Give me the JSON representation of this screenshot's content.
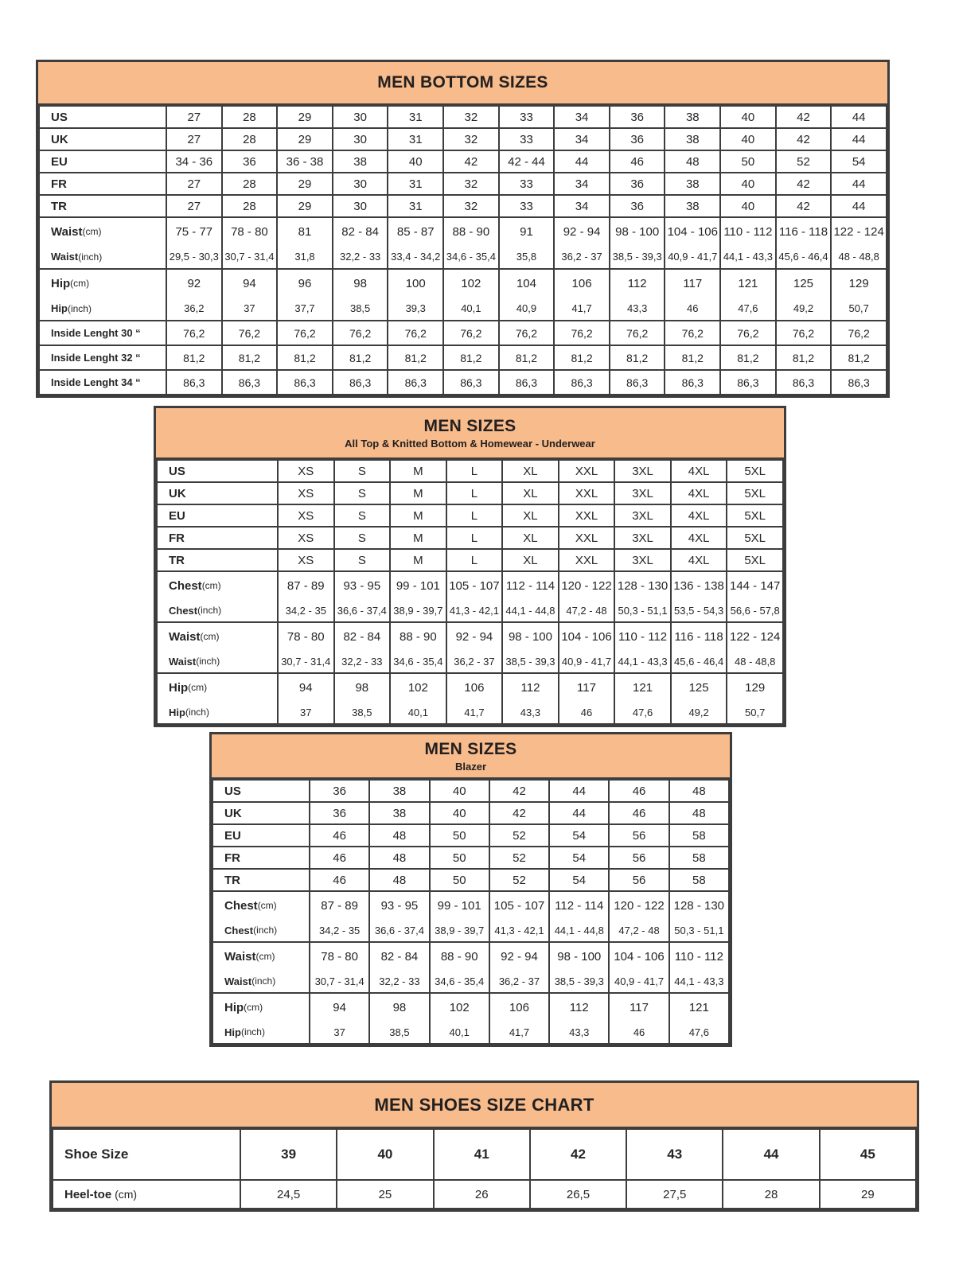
{
  "theme": {
    "header_bg": "#F7BB8C",
    "border_color": "#3d3d3d",
    "text_color": "#262626"
  },
  "tables": {
    "bottom": {
      "title": "MEN BOTTOM SIZES",
      "rows": [
        {
          "type": "single",
          "cls": "size",
          "label": "US",
          "values": [
            "27",
            "28",
            "29",
            "30",
            "31",
            "32",
            "33",
            "34",
            "36",
            "38",
            "40",
            "42",
            "44"
          ]
        },
        {
          "type": "single",
          "cls": "size",
          "label": "UK",
          "values": [
            "27",
            "28",
            "29",
            "30",
            "31",
            "32",
            "33",
            "34",
            "36",
            "38",
            "40",
            "42",
            "44"
          ]
        },
        {
          "type": "single",
          "cls": "size",
          "label": "EU",
          "values": [
            "34 - 36",
            "36",
            "36 - 38",
            "38",
            "40",
            "42",
            "42 - 44",
            "44",
            "46",
            "48",
            "50",
            "52",
            "54"
          ]
        },
        {
          "type": "single",
          "cls": "size",
          "label": "FR",
          "values": [
            "27",
            "28",
            "29",
            "30",
            "31",
            "32",
            "33",
            "34",
            "36",
            "38",
            "40",
            "42",
            "44"
          ]
        },
        {
          "type": "single",
          "cls": "size",
          "label": "TR",
          "values": [
            "27",
            "28",
            "29",
            "30",
            "31",
            "32",
            "33",
            "34",
            "36",
            "38",
            "40",
            "42",
            "44"
          ]
        },
        {
          "type": "group",
          "label": "Waist",
          "top_unit": "(cm)",
          "bottom_unit": "(inch)",
          "top": [
            "75 - 77",
            "78 - 80",
            "81",
            "82 - 84",
            "85 - 87",
            "88 - 90",
            "91",
            "92 - 94",
            "98 - 100",
            "104 - 106",
            "110 - 112",
            "116 - 118",
            "122 - 124"
          ],
          "bottom": [
            "29,5 - 30,3",
            "30,7 - 31,4",
            "31,8",
            "32,2 - 33",
            "33,4 - 34,2",
            "34,6 - 35,4",
            "35,8",
            "36,2 - 37",
            "38,5 - 39,3",
            "40,9 - 41,7",
            "44,1 - 43,3",
            "45,6 - 46,4",
            "48 - 48,8"
          ]
        },
        {
          "type": "group",
          "label": "Hip",
          "top_unit": "(cm)",
          "bottom_unit": "(inch)",
          "top": [
            "92",
            "94",
            "96",
            "98",
            "100",
            "102",
            "104",
            "106",
            "112",
            "117",
            "121",
            "125",
            "129"
          ],
          "bottom": [
            "36,2",
            "37",
            "37,7",
            "38,5",
            "39,3",
            "40,1",
            "40,9",
            "41,7",
            "43,3",
            "46",
            "47,6",
            "49,2",
            "50,7"
          ]
        },
        {
          "type": "single",
          "cls": "inside",
          "label": "Inside Lenght 30 “",
          "values": [
            "76,2",
            "76,2",
            "76,2",
            "76,2",
            "76,2",
            "76,2",
            "76,2",
            "76,2",
            "76,2",
            "76,2",
            "76,2",
            "76,2",
            "76,2"
          ]
        },
        {
          "type": "single",
          "cls": "inside",
          "label": "Inside Lenght 32 “",
          "values": [
            "81,2",
            "81,2",
            "81,2",
            "81,2",
            "81,2",
            "81,2",
            "81,2",
            "81,2",
            "81,2",
            "81,2",
            "81,2",
            "81,2",
            "81,2"
          ]
        },
        {
          "type": "single",
          "cls": "inside",
          "label": "Inside Lenght 34 “",
          "values": [
            "86,3",
            "86,3",
            "86,3",
            "86,3",
            "86,3",
            "86,3",
            "86,3",
            "86,3",
            "86,3",
            "86,3",
            "86,3",
            "86,3",
            "86,3"
          ]
        }
      ]
    },
    "tops": {
      "title": "MEN SIZES",
      "subtitle": "All Top & Knitted Bottom & Homewear - Underwear",
      "rows": [
        {
          "type": "single",
          "cls": "size",
          "label": "US",
          "values": [
            "XS",
            "S",
            "M",
            "L",
            "XL",
            "XXL",
            "3XL",
            "4XL",
            "5XL"
          ]
        },
        {
          "type": "single",
          "cls": "size",
          "label": "UK",
          "values": [
            "XS",
            "S",
            "M",
            "L",
            "XL",
            "XXL",
            "3XL",
            "4XL",
            "5XL"
          ]
        },
        {
          "type": "single",
          "cls": "size",
          "label": "EU",
          "values": [
            "XS",
            "S",
            "M",
            "L",
            "XL",
            "XXL",
            "3XL",
            "4XL",
            "5XL"
          ]
        },
        {
          "type": "single",
          "cls": "size",
          "label": "FR",
          "values": [
            "XS",
            "S",
            "M",
            "L",
            "XL",
            "XXL",
            "3XL",
            "4XL",
            "5XL"
          ]
        },
        {
          "type": "single",
          "cls": "size",
          "label": "TR",
          "values": [
            "XS",
            "S",
            "M",
            "L",
            "XL",
            "XXL",
            "3XL",
            "4XL",
            "5XL"
          ]
        },
        {
          "type": "group",
          "label": "Chest",
          "top_unit": "(cm)",
          "bottom_unit": "(inch)",
          "top": [
            "87 - 89",
            "93 - 95",
            "99 - 101",
            "105 - 107",
            "112 - 114",
            "120 - 122",
            "128 - 130",
            "136 - 138",
            "144 - 147"
          ],
          "bottom": [
            "34,2 - 35",
            "36,6 - 37,4",
            "38,9 - 39,7",
            "41,3 - 42,1",
            "44,1 - 44,8",
            "47,2 - 48",
            "50,3 - 51,1",
            "53,5 - 54,3",
            "56,6 - 57,8"
          ]
        },
        {
          "type": "group",
          "label": "Waist",
          "top_unit": "(cm)",
          "bottom_unit": "(inch)",
          "top": [
            "78 - 80",
            "82 - 84",
            "88 - 90",
            "92 - 94",
            "98 - 100",
            "104 - 106",
            "110 - 112",
            "116 - 118",
            "122 - 124"
          ],
          "bottom": [
            "30,7 - 31,4",
            "32,2 - 33",
            "34,6 - 35,4",
            "36,2 - 37",
            "38,5 - 39,3",
            "40,9 - 41,7",
            "44,1 - 43,3",
            "45,6 - 46,4",
            "48 - 48,8"
          ]
        },
        {
          "type": "group",
          "label": "Hip",
          "top_unit": "(cm)",
          "bottom_unit": "(inch)",
          "top": [
            "94",
            "98",
            "102",
            "106",
            "112",
            "117",
            "121",
            "125",
            "129"
          ],
          "bottom": [
            "37",
            "38,5",
            "40,1",
            "41,7",
            "43,3",
            "46",
            "47,6",
            "49,2",
            "50,7"
          ]
        }
      ]
    },
    "blazer": {
      "title": "MEN SIZES",
      "subtitle": "Blazer",
      "rows": [
        {
          "type": "single",
          "cls": "size",
          "label": "US",
          "values": [
            "36",
            "38",
            "40",
            "42",
            "44",
            "46",
            "48"
          ]
        },
        {
          "type": "single",
          "cls": "size",
          "label": "UK",
          "values": [
            "36",
            "38",
            "40",
            "42",
            "44",
            "46",
            "48"
          ]
        },
        {
          "type": "single",
          "cls": "size",
          "label": "EU",
          "values": [
            "46",
            "48",
            "50",
            "52",
            "54",
            "56",
            "58"
          ]
        },
        {
          "type": "single",
          "cls": "size",
          "label": "FR",
          "values": [
            "46",
            "48",
            "50",
            "52",
            "54",
            "56",
            "58"
          ]
        },
        {
          "type": "single",
          "cls": "size",
          "label": "TR",
          "values": [
            "46",
            "48",
            "50",
            "52",
            "54",
            "56",
            "58"
          ]
        },
        {
          "type": "group",
          "label": "Chest",
          "top_unit": "(cm)",
          "bottom_unit": "(inch)",
          "top": [
            "87 - 89",
            "93 - 95",
            "99 - 101",
            "105 - 107",
            "112 - 114",
            "120 - 122",
            "128 - 130"
          ],
          "bottom": [
            "34,2 - 35",
            "36,6 - 37,4",
            "38,9 - 39,7",
            "41,3 - 42,1",
            "44,1 - 44,8",
            "47,2 - 48",
            "50,3 - 51,1"
          ]
        },
        {
          "type": "group",
          "label": "Waist",
          "top_unit": "(cm)",
          "bottom_unit": "(inch)",
          "top": [
            "78 - 80",
            "82 - 84",
            "88 - 90",
            "92 - 94",
            "98 - 100",
            "104 - 106",
            "110 - 112"
          ],
          "bottom": [
            "30,7 - 31,4",
            "32,2 - 33",
            "34,6 - 35,4",
            "36,2 - 37",
            "38,5 - 39,3",
            "40,9 - 41,7",
            "44,1 - 43,3"
          ]
        },
        {
          "type": "group",
          "label": "Hip",
          "top_unit": "(cm)",
          "bottom_unit": "(inch)",
          "top": [
            "94",
            "98",
            "102",
            "106",
            "112",
            "117",
            "121"
          ],
          "bottom": [
            "37",
            "38,5",
            "40,1",
            "41,7",
            "43,3",
            "46",
            "47,6"
          ]
        }
      ]
    },
    "shoes": {
      "title": "MEN SHOES SIZE CHART",
      "rows": [
        {
          "type": "single",
          "cls": "shoe",
          "label": "Shoe Size",
          "values": [
            "39",
            "40",
            "41",
            "42",
            "43",
            "44",
            "45"
          ]
        },
        {
          "type": "single",
          "cls": "heel",
          "label": "Heel-toe",
          "label_unit": "(cm)",
          "values": [
            "24,5",
            "25",
            "26",
            "26,5",
            "27,5",
            "28",
            "29"
          ]
        }
      ]
    }
  }
}
